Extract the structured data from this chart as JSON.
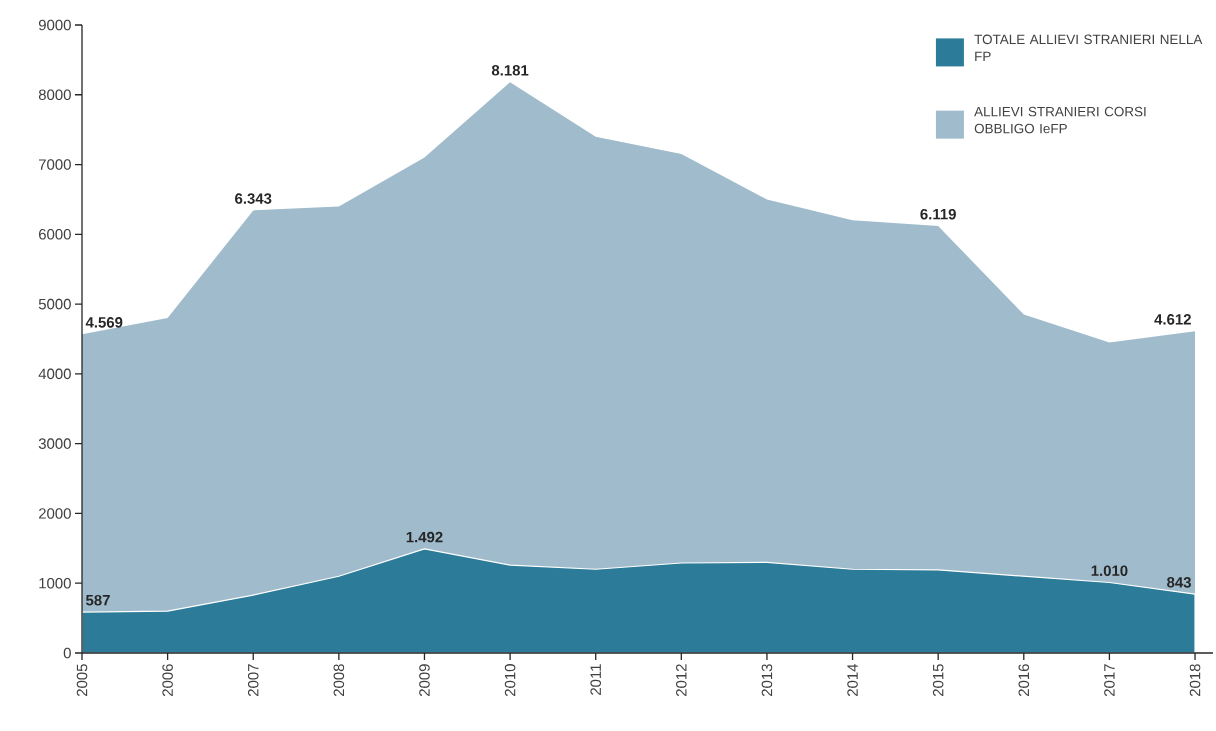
{
  "chart_data": {
    "type": "area",
    "categories": [
      "2005",
      "2006",
      "2007",
      "2008",
      "2009",
      "2010",
      "2011",
      "2012",
      "2013",
      "2014",
      "2015",
      "2016",
      "2017",
      "2018"
    ],
    "series": [
      {
        "name": "TOTALE ALLIEVI STRANIERI NELLA FP",
        "color": "#2c7b99",
        "values": [
          587,
          600,
          830,
          1100,
          1492,
          1260,
          1200,
          1290,
          1300,
          1200,
          1190,
          1100,
          1010,
          843
        ],
        "value_labels": [
          "587",
          null,
          null,
          null,
          "1.492",
          null,
          null,
          null,
          null,
          null,
          null,
          null,
          "1.010",
          "843"
        ]
      },
      {
        "name": "ALLIEVI STRANIERI CORSI OBBLIGO IeFP",
        "color": "#a0bccc",
        "values": [
          4569,
          4800,
          6343,
          6400,
          7100,
          8181,
          7400,
          7150,
          6500,
          6200,
          6119,
          4850,
          4450,
          4612
        ],
        "value_labels": [
          "4.569",
          null,
          "6.343",
          null,
          null,
          "8.181",
          null,
          null,
          null,
          null,
          "6.119",
          null,
          null,
          "4.612"
        ]
      }
    ],
    "ylim": [
      0,
      9000
    ],
    "yticks": [
      0,
      1000,
      2000,
      3000,
      4000,
      5000,
      6000,
      7000,
      8000,
      9000
    ],
    "legend": "top right"
  }
}
